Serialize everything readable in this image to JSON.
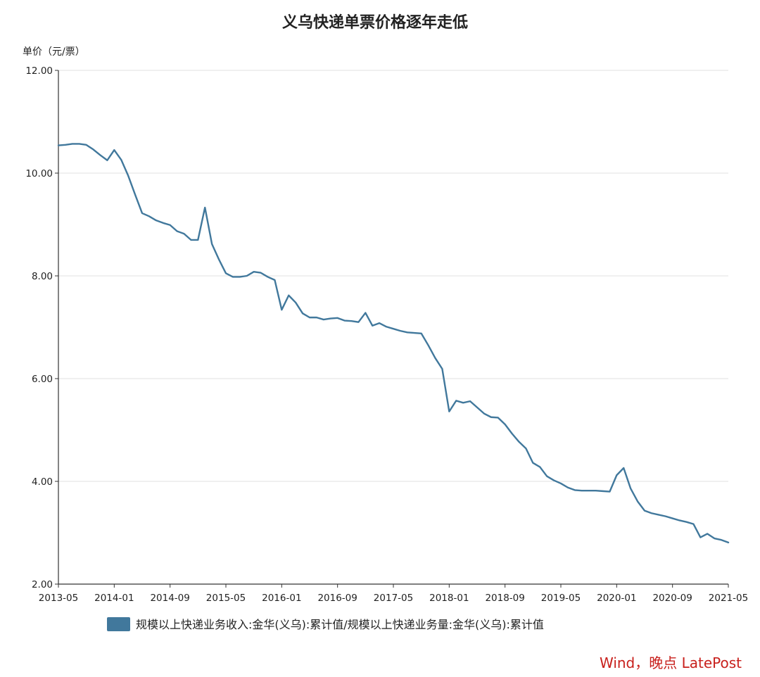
{
  "source": "Wind，晚点 LatePost",
  "chart_data": {
    "type": "line",
    "title": "义乌快递单票价格逐年走低",
    "xlabel": "",
    "ylabel": "单价（元/票）",
    "ylim": [
      2,
      12
    ],
    "yticks": [
      2,
      4,
      6,
      8,
      10,
      12
    ],
    "ytick_labels": [
      "2.00",
      "4.00",
      "6.00",
      "8.00",
      "10.00",
      "12.00"
    ],
    "xticks": [
      "2013-05",
      "2014-01",
      "2014-09",
      "2015-05",
      "2016-01",
      "2016-09",
      "2017-05",
      "2018-01",
      "2018-09",
      "2019-05",
      "2020-01",
      "2020-09",
      "2021-05"
    ],
    "grid": true,
    "legend_position": "bottom",
    "color": "#41789c",
    "series": [
      {
        "name": "规模以上快递业务收入:金华(义乌):累计值/规模以上快递业务量:金华(义乌):累计值",
        "x": [
          "2013-05",
          "2013-06",
          "2013-07",
          "2013-08",
          "2013-09",
          "2013-10",
          "2013-11",
          "2013-12",
          "2014-01",
          "2014-02",
          "2014-03",
          "2014-04",
          "2014-05",
          "2014-06",
          "2014-07",
          "2014-08",
          "2014-09",
          "2014-10",
          "2014-11",
          "2014-12",
          "2015-01",
          "2015-02",
          "2015-03",
          "2015-04",
          "2015-05",
          "2015-06",
          "2015-07",
          "2015-08",
          "2015-09",
          "2015-10",
          "2015-11",
          "2015-12",
          "2016-01",
          "2016-02",
          "2016-03",
          "2016-04",
          "2016-05",
          "2016-06",
          "2016-07",
          "2016-08",
          "2016-09",
          "2016-10",
          "2016-11",
          "2016-12",
          "2017-01",
          "2017-02",
          "2017-03",
          "2017-04",
          "2017-05",
          "2017-06",
          "2017-07",
          "2017-08",
          "2017-09",
          "2017-10",
          "2017-11",
          "2017-12",
          "2018-01",
          "2018-02",
          "2018-03",
          "2018-04",
          "2018-05",
          "2018-06",
          "2018-07",
          "2018-08",
          "2018-09",
          "2018-10",
          "2018-11",
          "2018-12",
          "2019-01",
          "2019-02",
          "2019-03",
          "2019-04",
          "2019-05",
          "2019-06",
          "2019-07",
          "2019-08",
          "2019-09",
          "2019-10",
          "2019-11",
          "2019-12",
          "2020-01",
          "2020-02",
          "2020-03",
          "2020-04",
          "2020-05",
          "2020-06",
          "2020-07",
          "2020-08",
          "2020-09",
          "2020-10",
          "2020-11",
          "2020-12",
          "2021-01",
          "2021-02",
          "2021-03",
          "2021-04",
          "2021-05"
        ],
        "y": [
          10.54,
          10.55,
          10.57,
          10.57,
          10.55,
          10.46,
          10.35,
          10.25,
          10.45,
          10.26,
          9.95,
          9.58,
          9.22,
          9.16,
          9.08,
          9.03,
          8.99,
          8.87,
          8.82,
          8.7,
          8.7,
          9.33,
          8.62,
          8.32,
          8.05,
          7.98,
          7.98,
          8.0,
          8.08,
          8.06,
          7.98,
          7.92,
          7.34,
          7.62,
          7.48,
          7.27,
          7.19,
          7.19,
          7.15,
          7.17,
          7.18,
          7.13,
          7.12,
          7.1,
          7.28,
          7.03,
          7.08,
          7.01,
          6.97,
          6.93,
          6.9,
          6.89,
          6.88,
          6.65,
          6.4,
          6.19,
          5.36,
          5.57,
          5.53,
          5.56,
          5.44,
          5.32,
          5.25,
          5.24,
          5.11,
          4.93,
          4.77,
          4.64,
          4.36,
          4.28,
          4.1,
          4.02,
          3.96,
          3.88,
          3.83,
          3.82,
          3.82,
          3.82,
          3.81,
          3.8,
          4.12,
          4.26,
          3.86,
          3.61,
          3.43,
          3.38,
          3.35,
          3.32,
          3.28,
          3.24,
          3.21,
          3.17,
          2.91,
          2.98,
          2.89,
          2.86,
          2.81
        ]
      }
    ]
  }
}
